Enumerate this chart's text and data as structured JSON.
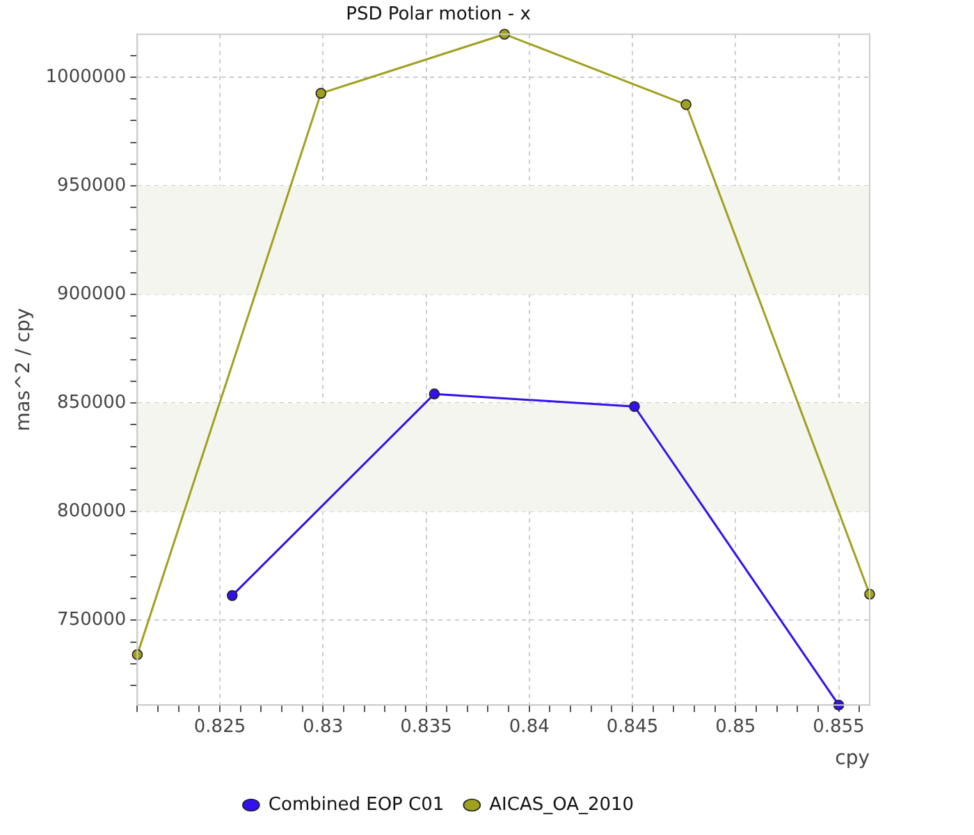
{
  "chart_data": {
    "type": "line",
    "title": "PSD Polar motion - x",
    "xlabel": "cpy",
    "ylabel": "mas^2 / cpy",
    "series": [
      {
        "name": "Combined EOP C01",
        "color": "#3311ee",
        "x": [
          0.8256,
          0.8354,
          0.8451,
          0.855
        ],
        "values": [
          761400,
          854200,
          848400,
          711000
        ]
      },
      {
        "name": "AICAS_OA_2010",
        "color": "#a0a020",
        "x": [
          0.821,
          0.8299,
          0.8388,
          0.8476,
          0.8565
        ],
        "values": [
          734200,
          992600,
          1019800,
          987400,
          762000
        ]
      }
    ],
    "xlim": [
      0.821,
      0.8565
    ],
    "xticks": [
      {
        "value": 0.821,
        "label": null
      },
      {
        "value": 0.822,
        "label": null
      },
      {
        "value": 0.823,
        "label": null
      },
      {
        "value": 0.824,
        "label": null
      },
      0.825,
      {
        "value": 0.826,
        "label": null
      },
      {
        "value": 0.827,
        "label": null
      },
      {
        "value": 0.828,
        "label": null
      },
      {
        "value": 0.829,
        "label": null
      },
      0.83,
      {
        "value": 0.831,
        "label": null
      },
      {
        "value": 0.832,
        "label": null
      },
      {
        "value": 0.833,
        "label": null
      },
      {
        "value": 0.834,
        "label": null
      },
      0.835,
      {
        "value": 0.836,
        "label": null
      },
      {
        "value": 0.837,
        "label": null
      },
      {
        "value": 0.838,
        "label": null
      },
      {
        "value": 0.839,
        "label": null
      },
      0.84,
      {
        "value": 0.841,
        "label": null
      },
      {
        "value": 0.842,
        "label": null
      },
      {
        "value": 0.843,
        "label": null
      },
      {
        "value": 0.844,
        "label": null
      },
      0.845,
      {
        "value": 0.846,
        "label": null
      },
      {
        "value": 0.847,
        "label": null
      },
      {
        "value": 0.848,
        "label": null
      },
      {
        "value": 0.849,
        "label": null
      },
      0.85,
      {
        "value": 0.851,
        "label": null
      },
      {
        "value": 0.852,
        "label": null
      },
      {
        "value": 0.853,
        "label": null
      },
      {
        "value": 0.854,
        "label": null
      },
      0.855,
      {
        "value": 0.856,
        "label": null
      }
    ],
    "ylim": [
      711000,
      1019800
    ],
    "yticks": [
      {
        "value": 720000,
        "label": null
      },
      {
        "value": 730000,
        "label": null
      },
      {
        "value": 740000,
        "label": null
      },
      750000,
      {
        "value": 760000,
        "label": null
      },
      {
        "value": 770000,
        "label": null
      },
      {
        "value": 780000,
        "label": null
      },
      {
        "value": 790000,
        "label": null
      },
      800000,
      {
        "value": 810000,
        "label": null
      },
      {
        "value": 820000,
        "label": null
      },
      {
        "value": 830000,
        "label": null
      },
      {
        "value": 840000,
        "label": null
      },
      850000,
      {
        "value": 860000,
        "label": null
      },
      {
        "value": 870000,
        "label": null
      },
      {
        "value": 880000,
        "label": null
      },
      {
        "value": 890000,
        "label": null
      },
      900000,
      {
        "value": 910000,
        "label": null
      },
      {
        "value": 920000,
        "label": null
      },
      {
        "value": 930000,
        "label": null
      },
      {
        "value": 940000,
        "label": null
      },
      950000,
      {
        "value": 960000,
        "label": null
      },
      {
        "value": 970000,
        "label": null
      },
      {
        "value": 980000,
        "label": null
      },
      {
        "value": 990000,
        "label": null
      },
      1000000,
      {
        "value": 1010000,
        "label": null
      }
    ],
    "bands": [
      {
        "axis": "y",
        "from": 800000,
        "to": 850000,
        "color": "#f5f5f0"
      },
      {
        "axis": "y",
        "from": 900000,
        "to": 950000,
        "color": "#f5f5f0"
      }
    ],
    "grid": true,
    "legend": "bottom",
    "marker": "circle",
    "line_style": "solid"
  }
}
